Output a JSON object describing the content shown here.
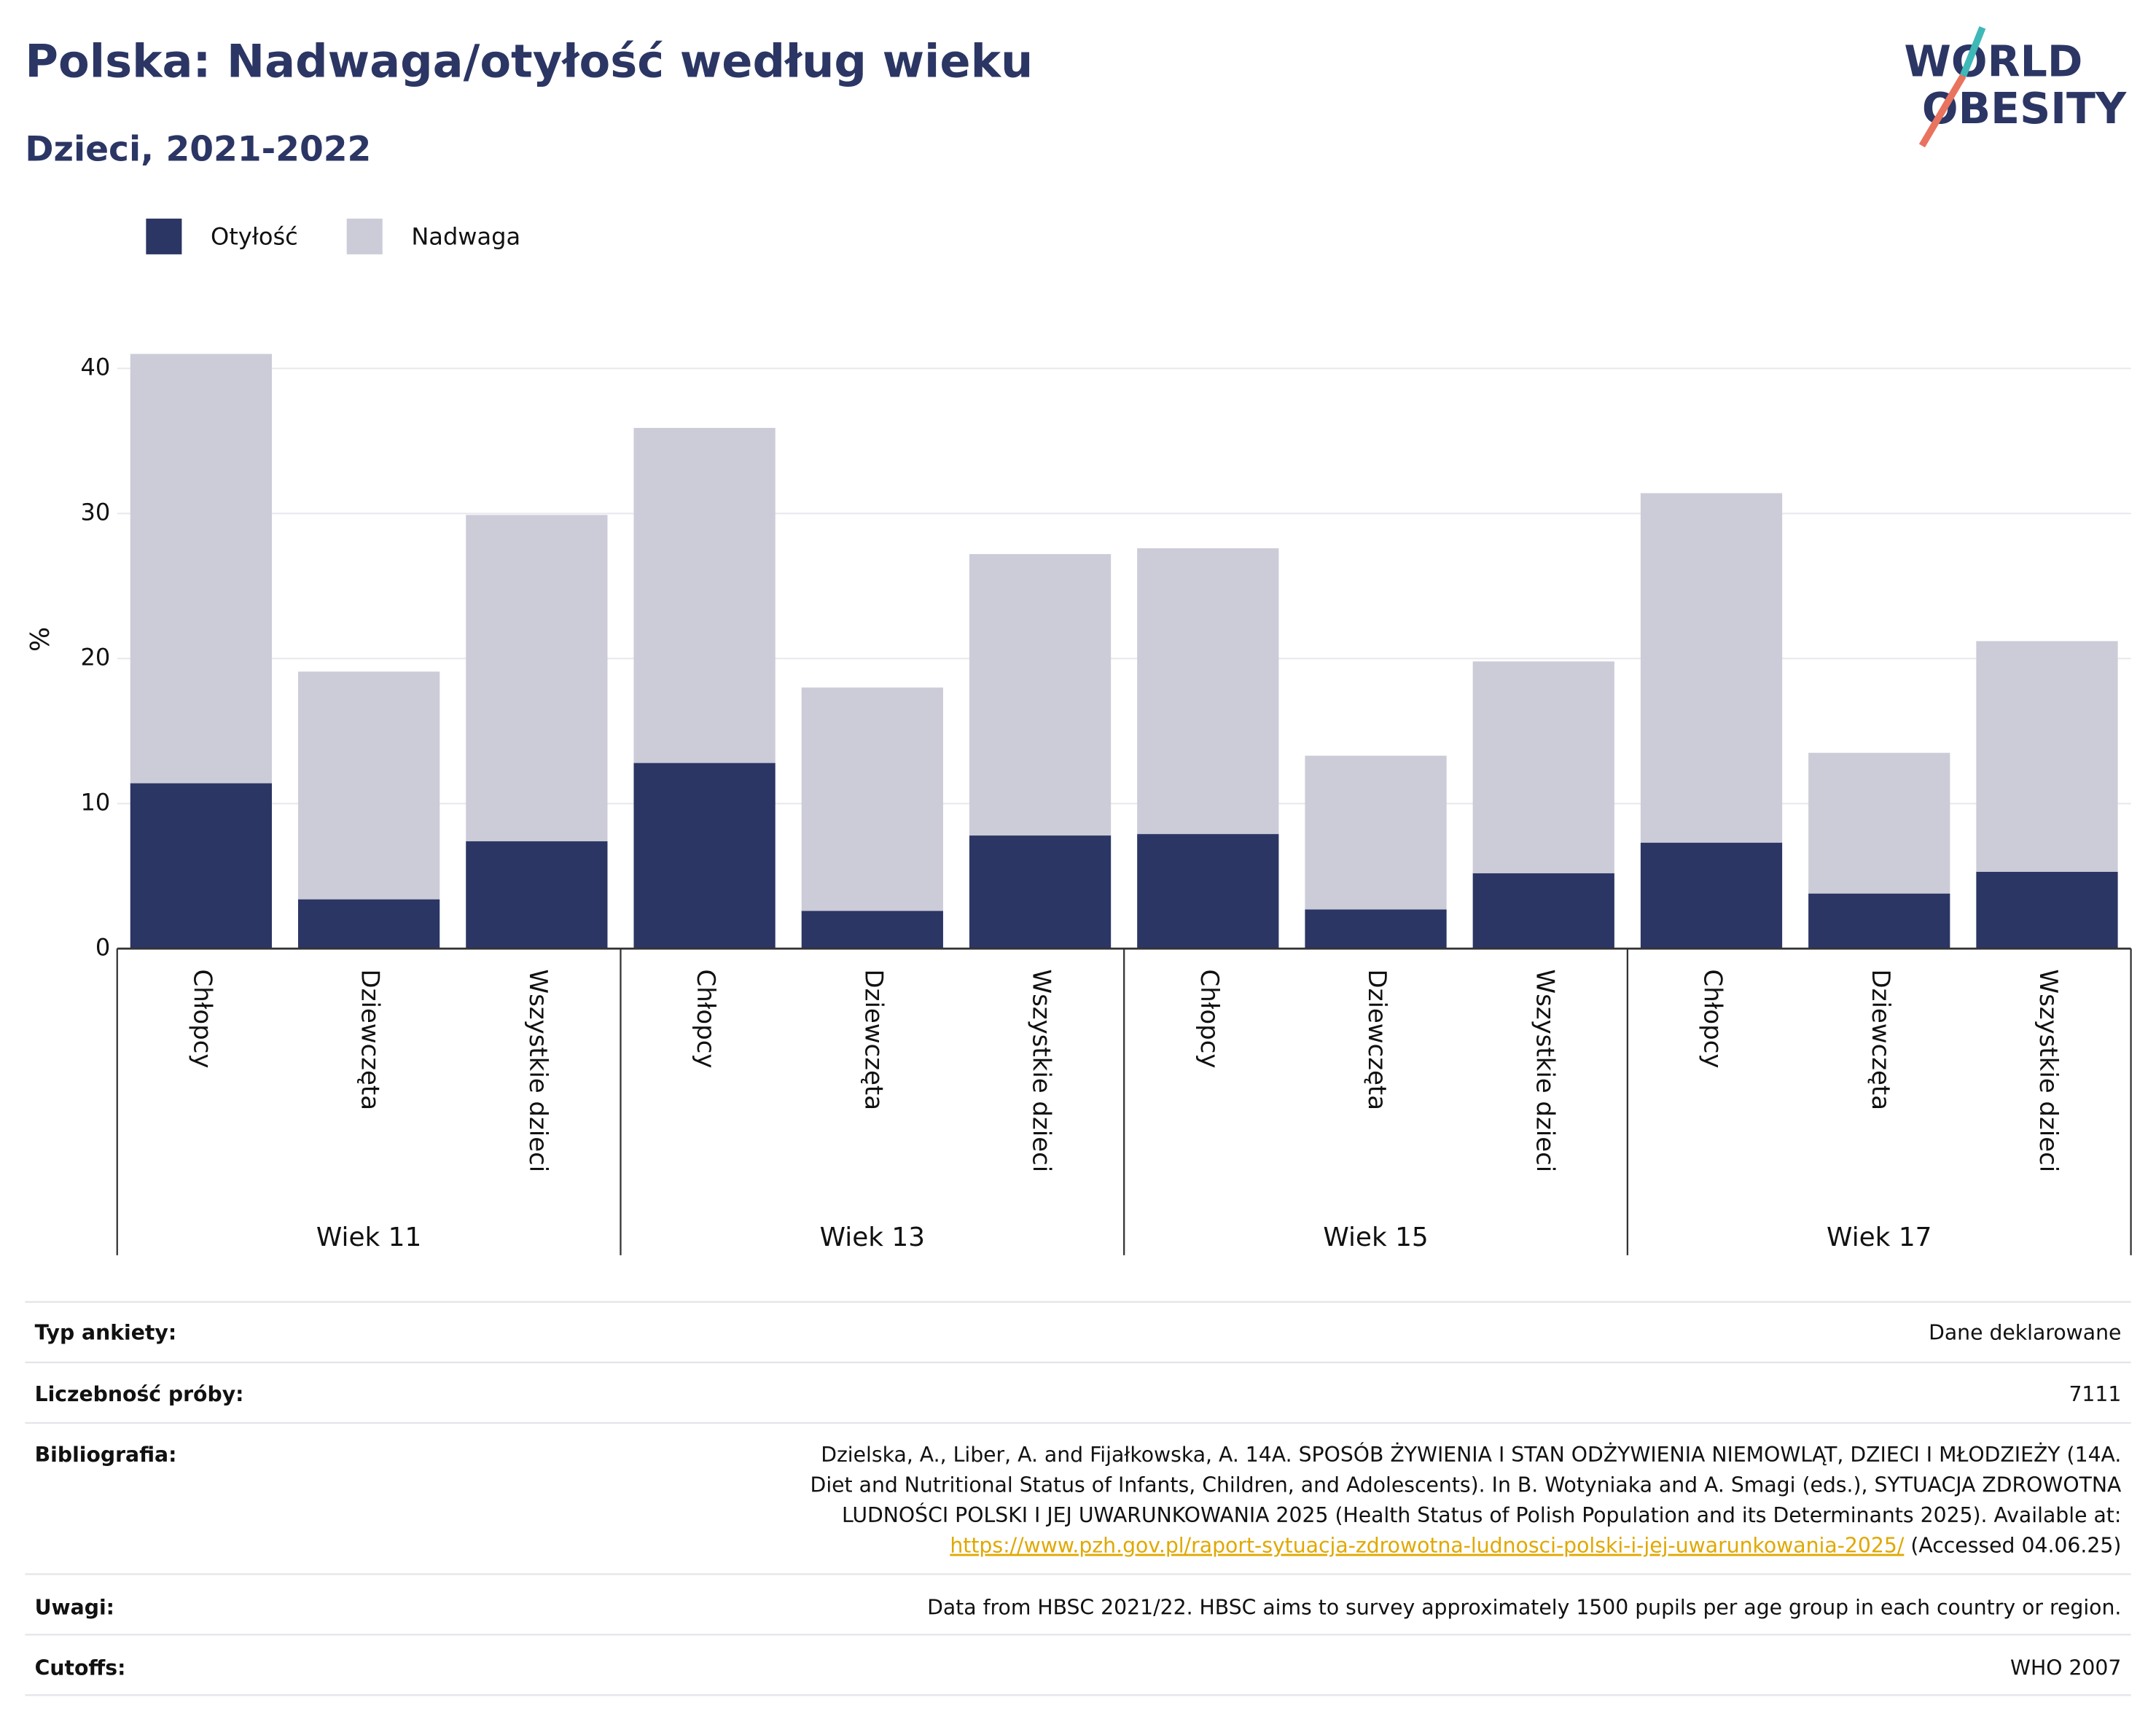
{
  "chart_data": {
    "type": "stacked_bar",
    "title": "Polska: Nadwaga/otyłość według wieku",
    "subtitle": "Dzieci, 2021-2022",
    "y_label": "%",
    "logo": [
      "WORLD",
      "OBESITY"
    ],
    "groups": [
      "Wiek 11",
      "Wiek 13",
      "Wiek 15",
      "Wiek 17"
    ],
    "categories": [
      "Chłopcy",
      "Dziewczęta",
      "Wszystkie dzieci",
      "Chłopcy",
      "Dziewczęta",
      "Wszystkie dzieci",
      "Chłopcy",
      "Dziewczęta",
      "Wszystkie dzieci",
      "Chłopcy",
      "Dziewczęta",
      "Wszystkie dzieci"
    ],
    "series": [
      {
        "name": "Otyłość",
        "color": "#2b3664",
        "values": [
          11.4,
          3.4,
          7.4,
          12.8,
          2.6,
          7.8,
          7.9,
          2.7,
          5.2,
          7.3,
          3.8,
          5.3
        ]
      },
      {
        "name": "Nadwaga",
        "color": "#cbccd8",
        "values": [
          29.6,
          15.7,
          22.5,
          23.1,
          15.4,
          19.4,
          19.7,
          10.6,
          14.6,
          24.1,
          9.7,
          15.9
        ]
      }
    ],
    "ylim": [
      0,
      40.8
    ],
    "yticks": [
      0,
      10,
      20,
      30,
      40
    ],
    "grid": true,
    "footer": {
      "survey": {
        "label": "Typ ankiety:",
        "value": "Dane deklarowane"
      },
      "sample": {
        "label": "Liczebność próby:",
        "value": "7111"
      },
      "bibliography": {
        "label": "Bibliografia:",
        "lines": [
          "Dzielska, A., Liber, A. and Fijałkowska, A. 14A. SPOSÓB ŻYWIENIA I STAN ODŻYWIENIA NIEMOWLĄT, DZIECI I MŁODZIEŻY (14A.",
          "Diet and Nutritional Status of Infants, Children, and Adolescents). In B. Wotyniaka and A. Smagi (eds.), SYTUACJA ZDROWOTNA",
          "LUDNOŚCI POLSKI I JEJ UWARUNKOWANIA 2025 (Health Status of Polish Population and its Determinants 2025). Available at:"
        ],
        "link": "https://www.pzh.gov.pl/raport-sytuacja-zdrowotna-ludnosci-polski-i-jej-uwarunkowania-2025/",
        "after": " (Accessed 04.06.25)"
      },
      "notes": {
        "label": "Uwagi:",
        "value": "Data from HBSC 2021/22. HBSC aims to survey approximately 1500 pupils per age group in each country or region."
      },
      "cutoffs": {
        "label": "Cutoffs:",
        "value": "WHO 2007"
      }
    }
  }
}
